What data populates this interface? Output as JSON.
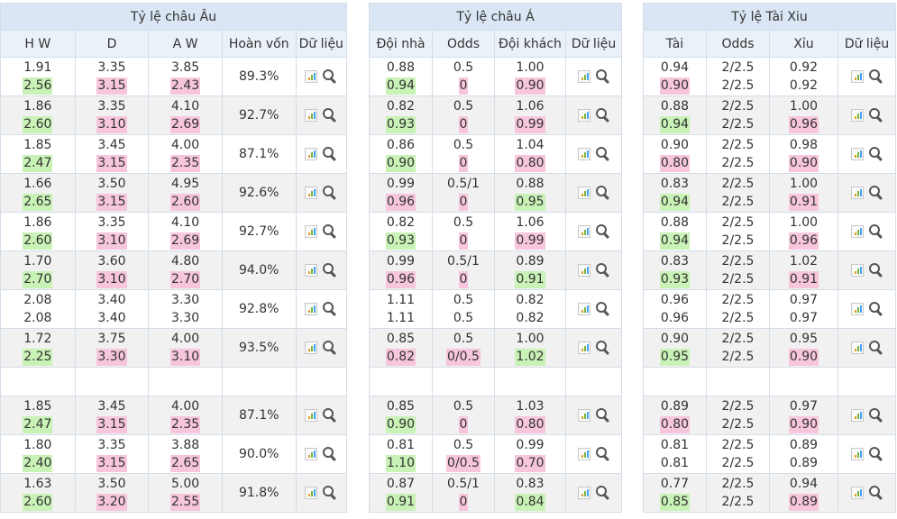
{
  "europe": {
    "title": "Tỷ lệ châu Âu",
    "headers": [
      "H W",
      "D",
      "A W",
      "Hoàn vốn",
      "Dữ liệu"
    ],
    "rows": [
      {
        "c": [
          [
            "1.91",
            "2.56",
            "up"
          ],
          [
            "3.35",
            "3.15",
            "dn"
          ],
          [
            "3.85",
            "2.43",
            "dn"
          ]
        ],
        "r": "89.3%"
      },
      {
        "c": [
          [
            "1.86",
            "2.60",
            "up"
          ],
          [
            "3.35",
            "3.10",
            "dn"
          ],
          [
            "4.10",
            "2.69",
            "dn"
          ]
        ],
        "r": "92.7%"
      },
      {
        "c": [
          [
            "1.85",
            "2.47",
            "up"
          ],
          [
            "3.45",
            "3.15",
            "dn"
          ],
          [
            "4.00",
            "2.35",
            "dn"
          ]
        ],
        "r": "87.1%"
      },
      {
        "c": [
          [
            "1.66",
            "2.65",
            "up"
          ],
          [
            "3.50",
            "3.15",
            "dn"
          ],
          [
            "4.95",
            "2.60",
            "dn"
          ]
        ],
        "r": "92.6%"
      },
      {
        "c": [
          [
            "1.86",
            "2.60",
            "up"
          ],
          [
            "3.35",
            "3.10",
            "dn"
          ],
          [
            "4.10",
            "2.69",
            "dn"
          ]
        ],
        "r": "92.7%"
      },
      {
        "c": [
          [
            "1.70",
            "2.70",
            "up"
          ],
          [
            "3.60",
            "3.10",
            "dn"
          ],
          [
            "4.80",
            "2.70",
            "dn"
          ]
        ],
        "r": "94.0%"
      },
      {
        "c": [
          [
            "2.08",
            "2.08",
            ""
          ],
          [
            "3.40",
            "3.40",
            ""
          ],
          [
            "3.30",
            "3.30",
            ""
          ]
        ],
        "r": "92.8%"
      },
      {
        "c": [
          [
            "1.72",
            "2.25",
            "up"
          ],
          [
            "3.75",
            "3.30",
            "dn"
          ],
          [
            "4.00",
            "3.10",
            "dn"
          ]
        ],
        "r": "93.5%"
      },
      null,
      {
        "c": [
          [
            "1.85",
            "2.47",
            "up"
          ],
          [
            "3.45",
            "3.15",
            "dn"
          ],
          [
            "4.00",
            "2.35",
            "dn"
          ]
        ],
        "r": "87.1%"
      },
      {
        "c": [
          [
            "1.80",
            "2.40",
            "up"
          ],
          [
            "3.35",
            "3.15",
            "dn"
          ],
          [
            "3.88",
            "2.65",
            "dn"
          ]
        ],
        "r": "90.0%"
      },
      {
        "c": [
          [
            "1.63",
            "2.60",
            "up"
          ],
          [
            "3.50",
            "3.20",
            "dn"
          ],
          [
            "5.00",
            "2.55",
            "dn"
          ]
        ],
        "r": "91.8%"
      }
    ]
  },
  "asia": {
    "title": "Tỷ lệ châu Á",
    "headers": [
      "Đội nhà",
      "Odds",
      "Đội khách",
      "Dữ liệu"
    ],
    "rows": [
      {
        "c": [
          [
            "0.88",
            "0.94",
            "up"
          ],
          [
            "0.5",
            "0",
            "dn"
          ],
          [
            "1.00",
            "0.90",
            "dn"
          ]
        ]
      },
      {
        "c": [
          [
            "0.82",
            "0.93",
            "up"
          ],
          [
            "0.5",
            "0",
            "dn"
          ],
          [
            "1.06",
            "0.99",
            "dn"
          ]
        ]
      },
      {
        "c": [
          [
            "0.86",
            "0.90",
            "up"
          ],
          [
            "0.5",
            "0",
            "dn"
          ],
          [
            "1.04",
            "0.80",
            "dn"
          ]
        ]
      },
      {
        "c": [
          [
            "0.99",
            "0.96",
            "dn"
          ],
          [
            "0.5/1",
            "0",
            "dn"
          ],
          [
            "0.88",
            "0.95",
            "up"
          ]
        ]
      },
      {
        "c": [
          [
            "0.82",
            "0.93",
            "up"
          ],
          [
            "0.5",
            "0",
            "dn"
          ],
          [
            "1.06",
            "0.99",
            "dn"
          ]
        ]
      },
      {
        "c": [
          [
            "0.99",
            "0.96",
            "dn"
          ],
          [
            "0.5/1",
            "0",
            "dn"
          ],
          [
            "0.89",
            "0.91",
            "up"
          ]
        ]
      },
      {
        "c": [
          [
            "1.11",
            "1.11",
            ""
          ],
          [
            "0.5",
            "0.5",
            ""
          ],
          [
            "0.82",
            "0.82",
            ""
          ]
        ]
      },
      {
        "c": [
          [
            "0.85",
            "0.82",
            "dn"
          ],
          [
            "0.5",
            "0/0.5",
            "dn"
          ],
          [
            "1.00",
            "1.02",
            "up"
          ]
        ]
      },
      null,
      {
        "c": [
          [
            "0.85",
            "0.90",
            "up"
          ],
          [
            "0.5",
            "0",
            "dn"
          ],
          [
            "1.03",
            "0.80",
            "dn"
          ]
        ]
      },
      {
        "c": [
          [
            "0.81",
            "1.10",
            "up"
          ],
          [
            "0.5",
            "0/0.5",
            "dn"
          ],
          [
            "0.99",
            "0.70",
            "dn"
          ]
        ]
      },
      {
        "c": [
          [
            "0.87",
            "0.91",
            "up"
          ],
          [
            "0.5/1",
            "0",
            "dn"
          ],
          [
            "0.83",
            "0.84",
            "up"
          ]
        ]
      }
    ]
  },
  "taixiu": {
    "title": "Tỷ lệ Tài Xiu",
    "headers": [
      "Tài",
      "Odds",
      "Xỉu",
      "Dữ liệu"
    ],
    "rows": [
      {
        "c": [
          [
            "0.94",
            "0.90",
            "dn"
          ],
          [
            "2/2.5",
            "2/2.5",
            ""
          ],
          [
            "0.92",
            "0.92",
            ""
          ]
        ]
      },
      {
        "c": [
          [
            "0.88",
            "0.94",
            "up"
          ],
          [
            "2/2.5",
            "2/2.5",
            ""
          ],
          [
            "1.00",
            "0.96",
            "dn"
          ]
        ]
      },
      {
        "c": [
          [
            "0.90",
            "0.80",
            "dn"
          ],
          [
            "2/2.5",
            "2/2.5",
            ""
          ],
          [
            "0.98",
            "0.90",
            "dn"
          ]
        ]
      },
      {
        "c": [
          [
            "0.83",
            "0.94",
            "up"
          ],
          [
            "2/2.5",
            "2/2.5",
            ""
          ],
          [
            "1.00",
            "0.91",
            "dn"
          ]
        ]
      },
      {
        "c": [
          [
            "0.88",
            "0.94",
            "up"
          ],
          [
            "2/2.5",
            "2/2.5",
            ""
          ],
          [
            "1.00",
            "0.96",
            "dn"
          ]
        ]
      },
      {
        "c": [
          [
            "0.83",
            "0.93",
            "up"
          ],
          [
            "2/2.5",
            "2/2.5",
            ""
          ],
          [
            "1.02",
            "0.91",
            "dn"
          ]
        ]
      },
      {
        "c": [
          [
            "0.96",
            "0.96",
            ""
          ],
          [
            "2/2.5",
            "2/2.5",
            ""
          ],
          [
            "0.97",
            "0.97",
            ""
          ]
        ]
      },
      {
        "c": [
          [
            "0.90",
            "0.95",
            "up"
          ],
          [
            "2/2.5",
            "2/2.5",
            ""
          ],
          [
            "0.95",
            "0.90",
            "dn"
          ]
        ]
      },
      null,
      {
        "c": [
          [
            "0.89",
            "0.80",
            "dn"
          ],
          [
            "2/2.5",
            "2/2.5",
            ""
          ],
          [
            "0.97",
            "0.90",
            "dn"
          ]
        ]
      },
      {
        "c": [
          [
            "0.81",
            "0.81",
            ""
          ],
          [
            "2/2.5",
            "2/2.5",
            ""
          ],
          [
            "0.89",
            "0.89",
            ""
          ]
        ]
      },
      {
        "c": [
          [
            "0.77",
            "0.85",
            "up"
          ],
          [
            "2/2.5",
            "2/2.5",
            ""
          ],
          [
            "0.94",
            "0.89",
            "dn"
          ]
        ]
      }
    ]
  },
  "colors": {
    "header": "#dae6f4",
    "subheader": "#eaf1f9",
    "up": "#c9f2b6",
    "down": "#f7c6dd",
    "alt_row": "#f1f1f1"
  }
}
